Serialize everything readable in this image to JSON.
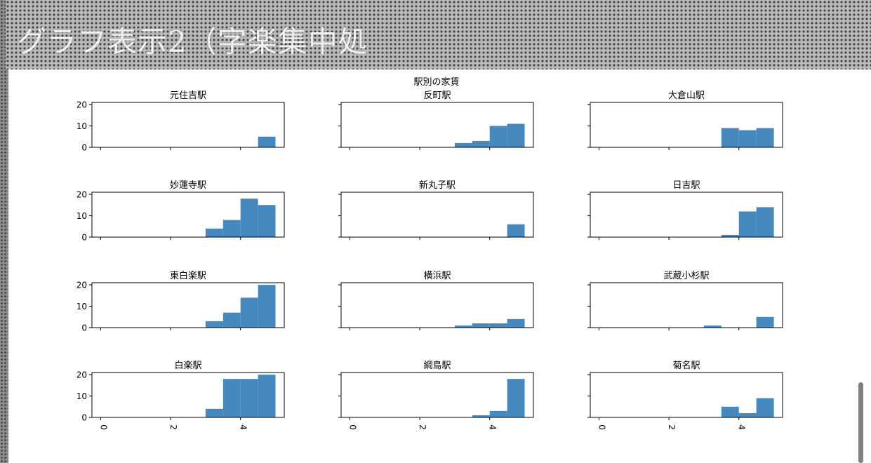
{
  "page": {
    "banner_title": "グラフ表示2（字楽集中処"
  },
  "chart_data": {
    "type": "bar",
    "title": "駅別の家賃",
    "bar_color": "#4689be",
    "bin_edges": [
      3.0,
      3.5,
      4.0,
      4.5,
      5.0
    ],
    "xlim": [
      -0.25,
      5.25
    ],
    "ylim": [
      0,
      21
    ],
    "x_ticks": [
      0,
      2,
      4
    ],
    "x_tick_labels": [
      "0",
      "2",
      "4"
    ],
    "y_ticks": [
      0,
      10,
      20
    ],
    "y_tick_labels": [
      "0",
      "10",
      "20"
    ],
    "grid": false,
    "panels": [
      {
        "name": "元住吉駅",
        "values": [
          0,
          0,
          0,
          5
        ]
      },
      {
        "name": "反町駅",
        "values": [
          2,
          3,
          10,
          11
        ]
      },
      {
        "name": "大倉山駅",
        "values": [
          0,
          9,
          8,
          9
        ]
      },
      {
        "name": "妙蓮寺駅",
        "values": [
          4,
          8,
          18,
          15
        ]
      },
      {
        "name": "新丸子駅",
        "values": [
          0,
          0,
          0,
          6
        ]
      },
      {
        "name": "日吉駅",
        "values": [
          0,
          1,
          12,
          14
        ]
      },
      {
        "name": "東白楽駅",
        "values": [
          3,
          7,
          14,
          20
        ]
      },
      {
        "name": "横浜駅",
        "values": [
          1,
          2,
          2,
          4
        ]
      },
      {
        "name": "武蔵小杉駅",
        "values": [
          1,
          0,
          0,
          5
        ]
      },
      {
        "name": "白楽駅",
        "values": [
          4,
          18,
          18,
          20
        ]
      },
      {
        "name": "綱島駅",
        "values": [
          0,
          1,
          3,
          18
        ]
      },
      {
        "name": "菊名駅",
        "values": [
          0,
          5,
          2,
          9
        ]
      }
    ]
  }
}
